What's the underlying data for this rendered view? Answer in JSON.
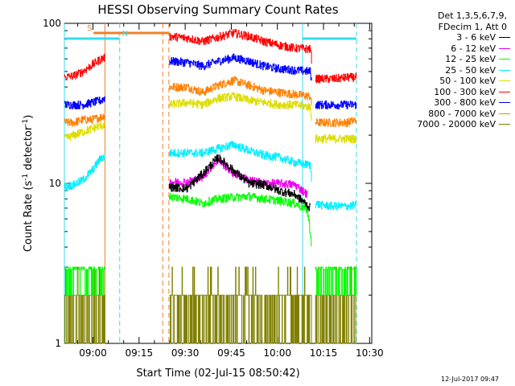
{
  "chart_data": {
    "type": "line",
    "title": "HESSI Observing Summary Count Rates",
    "xlabel": "Start Time (02-Jul-15 08:50:42)",
    "ylabel": "Count Rate (s",
    "ylabel_sup": "-1",
    "ylabel_tail": " detector",
    "ylabel_sup2": "-1",
    "ylabel_end": ")",
    "y_scale": "log",
    "ylim": [
      1,
      100
    ],
    "y_ticks": [
      1,
      10,
      100
    ],
    "y_tick_labels": [
      "1",
      "10",
      "100"
    ],
    "x_range_minutes": [
      0,
      100
    ],
    "x_ticks_minutes": [
      9.3,
      24.3,
      39.3,
      54.3,
      69.3,
      84.3,
      99.3
    ],
    "x_tick_labels": [
      "09:00",
      "09:15",
      "09:30",
      "09:45",
      "10:00",
      "10:15",
      "10:30"
    ],
    "legend_header": [
      "Det 1,3,5,6,7,9,",
      "FDecim 1, Att 0"
    ],
    "annotations": [
      {
        "label": "S",
        "x_start": 9.5,
        "x_end": 34.0,
        "color": "#f07f2a"
      },
      {
        "label": "N",
        "x_start": 0.5,
        "x_end": 18.0,
        "color": "#33ddee"
      },
      {
        "label": "",
        "x_start": 77.5,
        "x_end": 95.0,
        "color": "#33ddee"
      }
    ],
    "vertical_lines": [
      {
        "x": 0.0,
        "color": "#33ddee",
        "style": "solid"
      },
      {
        "x": 13.2,
        "color": "#f07f2a",
        "style": "solid"
      },
      {
        "x": 18.0,
        "color": "#33ddee",
        "style": "dashed"
      },
      {
        "x": 32.0,
        "color": "#f07f2a",
        "style": "dashed"
      },
      {
        "x": 34.0,
        "color": "#f07f2a",
        "style": "dashed"
      },
      {
        "x": 77.5,
        "color": "#33ddee",
        "style": "solid"
      },
      {
        "x": 95.0,
        "color": "#33ddee",
        "style": "dashed"
      }
    ],
    "data_gap_minutes": [
      13.2,
      34.0
    ],
    "second_gap_minutes": [
      80.5,
      81.5
    ],
    "series": [
      {
        "name": "3 - 6 keV",
        "color": "#000000",
        "x": [
          0,
          3,
          6,
          9,
          12,
          34,
          40,
          45,
          50,
          55,
          60,
          65,
          70,
          75,
          80,
          81,
          84,
          88,
          92,
          95
        ],
        "y": [
          null,
          null,
          null,
          null,
          null,
          9.5,
          9.3,
          11.5,
          14.5,
          12.0,
          10.0,
          9.8,
          9.0,
          8.5,
          7.0,
          null,
          null,
          null,
          null,
          null
        ]
      },
      {
        "name": "6 - 12 keV",
        "color": "#ee00ee",
        "x": [
          34,
          40,
          45,
          50,
          55,
          60,
          65,
          70,
          75,
          79
        ],
        "y": [
          10.2,
          10.2,
          11.0,
          14.0,
          11.5,
          10.5,
          10.0,
          10.0,
          9.8,
          8.5
        ]
      },
      {
        "name": "12 - 25 keV",
        "color": "#00ff00",
        "x": [
          0,
          3,
          6,
          9,
          13,
          34,
          40,
          45,
          50,
          55,
          60,
          65,
          70,
          75,
          79,
          81,
          84,
          88,
          92,
          95
        ],
        "y": [
          2.9,
          2.9,
          2.9,
          2.9,
          2.9,
          8.3,
          8.0,
          7.5,
          8.0,
          8.2,
          8.3,
          8.0,
          7.8,
          7.5,
          6.8,
          2.9,
          2.9,
          2.9,
          2.9,
          2.9
        ]
      },
      {
        "name": "25 - 50 keV",
        "color": "#00eeff",
        "x": [
          0,
          3,
          6,
          9,
          12,
          34,
          40,
          45,
          50,
          55,
          60,
          65,
          70,
          75,
          80,
          81,
          84,
          88,
          92,
          95
        ],
        "y": [
          9.5,
          9.8,
          10.5,
          12.0,
          14.5,
          15.5,
          15.5,
          15.5,
          16.5,
          17.5,
          16.0,
          15.0,
          14.5,
          13.5,
          13.0,
          7.5,
          7.3,
          7.2,
          7.2,
          7.3
        ]
      },
      {
        "name": "50 - 100 keV",
        "color": "#dddd00",
        "x": [
          0,
          3,
          6,
          9,
          12,
          34,
          40,
          45,
          50,
          55,
          60,
          65,
          70,
          75,
          80,
          81,
          84,
          88,
          92,
          95
        ],
        "y": [
          19,
          20,
          21,
          22,
          23,
          31,
          32,
          31,
          34,
          35,
          33,
          32,
          31,
          31,
          30,
          19,
          19,
          19,
          19,
          19
        ]
      },
      {
        "name": "100 - 300 keV",
        "color": "#ff0000",
        "x": [
          0,
          3,
          6,
          9,
          12,
          34,
          40,
          45,
          50,
          55,
          60,
          65,
          70,
          75,
          80,
          81,
          84,
          88,
          92,
          95
        ],
        "y": [
          46,
          47,
          50,
          55,
          60,
          83,
          81,
          77,
          82,
          87,
          83,
          77,
          73,
          70,
          69,
          45,
          45,
          45,
          46,
          46
        ]
      },
      {
        "name": "300 - 800 keV",
        "color": "#0000ff",
        "x": [
          0,
          3,
          6,
          9,
          12,
          34,
          40,
          45,
          50,
          55,
          60,
          65,
          70,
          75,
          80,
          81,
          84,
          88,
          92,
          95
        ],
        "y": [
          31,
          31,
          31,
          32,
          33,
          58,
          57,
          54,
          58,
          61,
          58,
          54,
          52,
          51,
          50,
          31,
          31,
          31,
          31,
          31
        ]
      },
      {
        "name": "800 - 7000 keV",
        "color": "#ff8000",
        "x": [
          0,
          3,
          6,
          9,
          12,
          34,
          40,
          45,
          50,
          55,
          60,
          65,
          70,
          75,
          80,
          81,
          84,
          88,
          92,
          95
        ],
        "y": [
          24,
          24,
          25,
          25,
          26,
          40,
          40,
          37,
          41,
          44,
          41,
          38,
          37,
          36,
          35,
          24,
          24,
          24,
          24,
          25
        ]
      },
      {
        "name": "7000 - 20000 keV",
        "color": "#808000",
        "x": [
          0,
          3,
          6,
          9,
          13,
          34,
          40,
          45,
          50,
          55,
          60,
          65,
          70,
          75,
          80,
          81,
          84,
          88,
          92,
          95
        ],
        "y": [
          2.0,
          2.0,
          2.0,
          2.0,
          2.0,
          2.0,
          2.0,
          2.0,
          2.0,
          2.0,
          2.0,
          2.0,
          2.0,
          2.0,
          2.0,
          2.0,
          2.0,
          2.0,
          2.0,
          2.0
        ]
      }
    ]
  },
  "footer_stamp": "12-Jul-2017 09:47"
}
